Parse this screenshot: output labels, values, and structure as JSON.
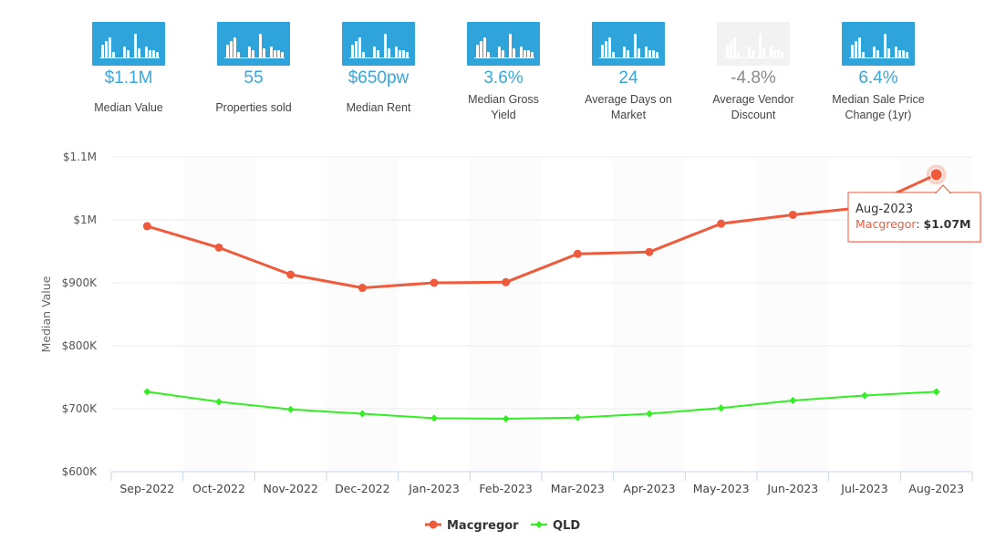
{
  "kpis": [
    {
      "value": "$1.1M",
      "label": "Median Value",
      "dim": false
    },
    {
      "value": "55",
      "label": "Properties sold",
      "dim": false
    },
    {
      "value": "$650pw",
      "label": "Median Rent",
      "dim": false
    },
    {
      "value": "3.6%",
      "label": "Median Gross Yield",
      "label_lines": [
        "Median Gross",
        "Yield"
      ],
      "dim": false
    },
    {
      "value": "24",
      "label": "Average Days on Market",
      "label_lines": [
        "Average Days on",
        "Market"
      ],
      "dim": false
    },
    {
      "value": "-4.8%",
      "label": "Average Vendor Discount",
      "label_lines": [
        "Average Vendor",
        "Discount"
      ],
      "dim": true
    },
    {
      "value": "6.4%",
      "label": "Median Sale Price Change (1yr)",
      "label_lines": [
        "Median Sale Price",
        "Change (1yr)"
      ],
      "dim": false
    }
  ],
  "icon": "bar-chart-icon",
  "chart_data": {
    "type": "line",
    "categories": [
      "Sep-2022",
      "Oct-2022",
      "Nov-2022",
      "Dec-2022",
      "Jan-2023",
      "Feb-2023",
      "Mar-2023",
      "Apr-2023",
      "May-2023",
      "Jun-2023",
      "Jul-2023",
      "Aug-2023"
    ],
    "series": [
      {
        "name": "Macgregor",
        "color": "#f05a3c",
        "values": [
          990000,
          956000,
          913000,
          892000,
          900000,
          901000,
          946000,
          949000,
          994000,
          1008000,
          1020000,
          1072000
        ]
      },
      {
        "name": "QLD",
        "color": "#33ee22",
        "values": [
          727000,
          711000,
          699000,
          692000,
          685000,
          684000,
          686000,
          692000,
          701000,
          713000,
          721000,
          727000
        ]
      }
    ],
    "ylabel": "Median Value",
    "ylim": [
      600000,
      1100000
    ],
    "yticks": [
      600000,
      700000,
      800000,
      900000,
      1000000,
      1100000
    ],
    "ytick_labels": [
      "$600K",
      "$700K",
      "$800K",
      "$900K",
      "$1M",
      "$1.1M"
    ],
    "legend_position": "bottom-center",
    "tooltip": {
      "title": "Aug-2023",
      "series": "Macgregor",
      "value": "$1.07M",
      "index": 11
    }
  }
}
